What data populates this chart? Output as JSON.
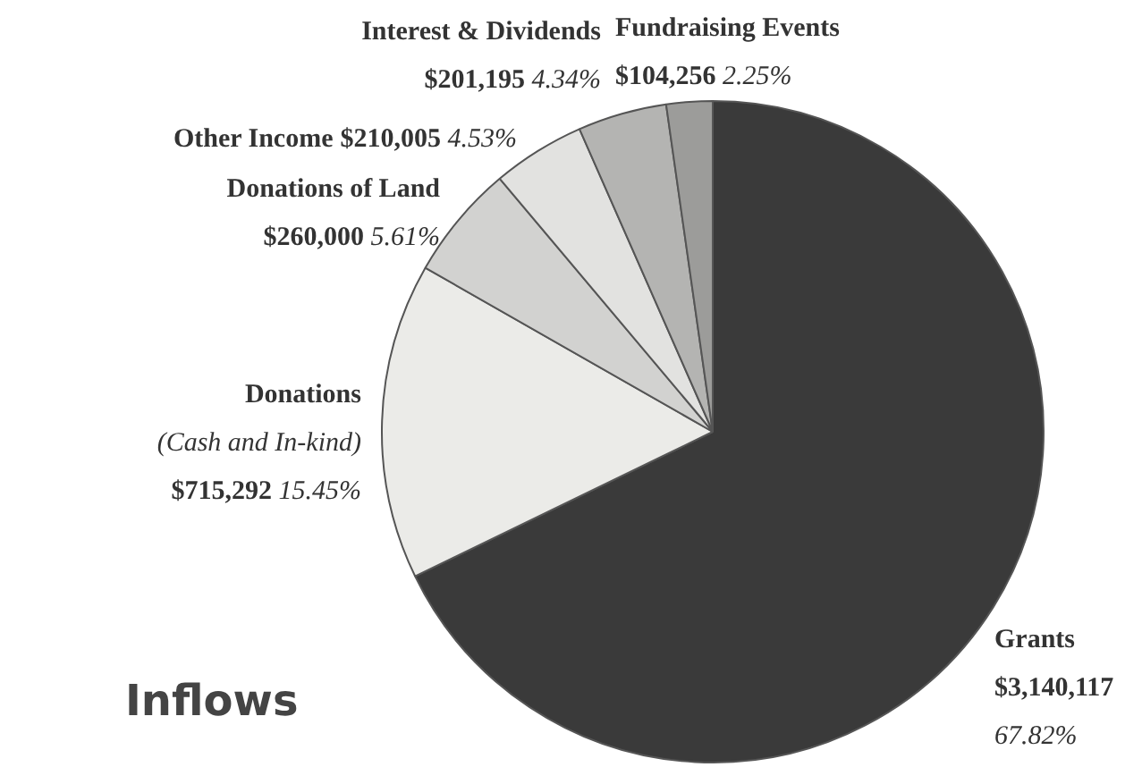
{
  "chart_data": {
    "type": "pie",
    "title": "Inflows",
    "categories": [
      "Grants",
      "Donations\n(Cash and In-kind)",
      "Donations of Land",
      "Other Income",
      "Interest & Dividends",
      "Fundraising Events"
    ],
    "values": [
      3140117,
      715292,
      260000,
      210005,
      201195,
      104256
    ],
    "value_labels": [
      "$3,140,117 67.82%",
      "$715,292 15.45%",
      "$260,000 5.61%",
      "$210,005 4.53%",
      "$201,195 4.34%",
      "$104,256 2.25%"
    ],
    "colors": [
      "#3a3a3a",
      "#ebebe8",
      "#d2d2d0",
      "#e2e2e0",
      "#b4b4b2",
      "#9c9c9a"
    ],
    "legend": false
  }
}
